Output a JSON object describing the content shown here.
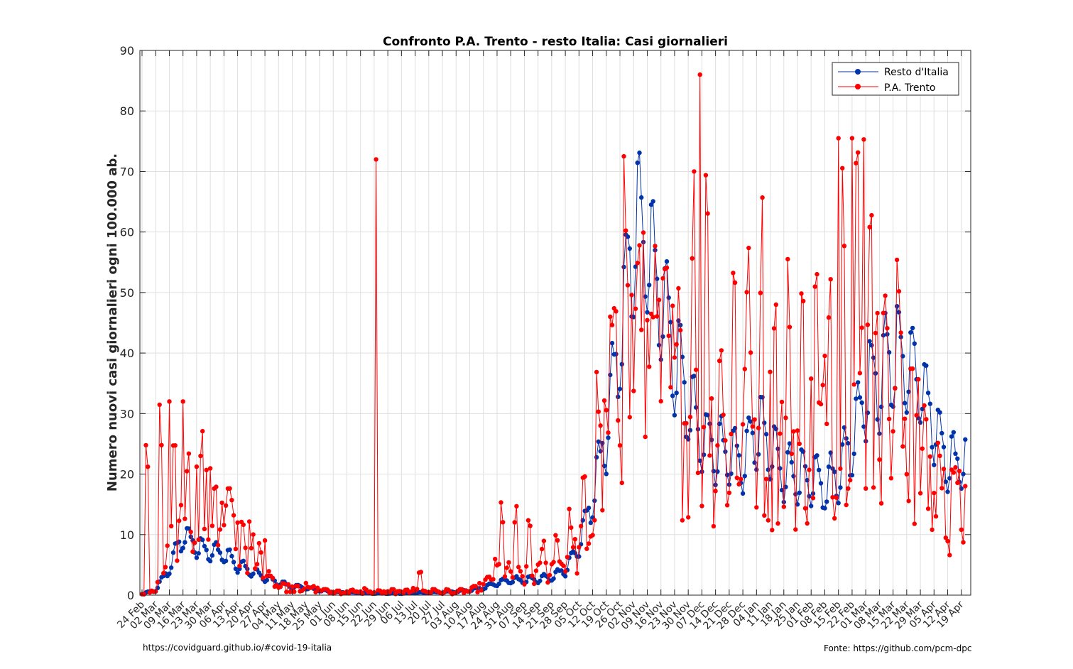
{
  "footer": {
    "source_url": "https://covidguard.github.io/#covid-19-italia",
    "credit": "Fonte: https://github.com/pcm-dpc"
  },
  "chart_data": {
    "type": "line",
    "title": "Confronto P.A. Trento - resto Italia: Casi giornalieri",
    "xlabel": "",
    "ylabel": "Numero nuovi casi giornalieri ogni 100.000 ab.",
    "ylim": [
      0,
      90
    ],
    "yticks": [
      0,
      10,
      20,
      30,
      40,
      50,
      60,
      70,
      80,
      90
    ],
    "x_start_date": "24 Feb",
    "x_tick_labels": [
      "24 Feb",
      "02 Mar",
      "09 Mar",
      "16 Mar",
      "23 Mar",
      "30 Mar",
      "06 Apr",
      "13 Apr",
      "20 Apr",
      "27 Apr",
      "04 May",
      "11 May",
      "18 May",
      "25 May",
      "01 Jun",
      "08 Jun",
      "15 Jun",
      "22 Jun",
      "29 Jun",
      "06 Jul",
      "13 Jul",
      "20 Jul",
      "27 Jul",
      "03 Aug",
      "10 Aug",
      "17 Aug",
      "24 Aug",
      "31 Aug",
      "07 Sep",
      "14 Sep",
      "21 Sep",
      "28 Sep",
      "05 Oct",
      "12 Oct",
      "19 Oct",
      "26 Oct",
      "02 Nov",
      "09 Nov",
      "16 Nov",
      "23 Nov",
      "30 Nov",
      "07 Dec",
      "14 Dec",
      "21 Dec",
      "28 Dec",
      "04 Jan",
      "11 Jan",
      "18 Jan",
      "25 Jan",
      "01 Feb",
      "08 Feb",
      "15 Feb",
      "22 Feb",
      "01 Mar",
      "08 Mar",
      "15 Mar",
      "22 Mar",
      "29 Mar",
      "05 Apr",
      "12 Apr",
      "19 Apr"
    ],
    "grid": true,
    "legend_position": "top-right",
    "series": [
      {
        "name": "Resto d'Italia",
        "color": "#0000bb",
        "weekly_values": [
          0.2,
          0.8,
          4.5,
          10.0,
          8.0,
          7.2,
          6.8,
          5.0,
          4.0,
          3.0,
          2.0,
          1.5,
          1.2,
          0.8,
          0.5,
          0.4,
          0.4,
          0.3,
          0.3,
          0.3,
          0.4,
          0.4,
          0.5,
          0.6,
          0.8,
          1.2,
          2.0,
          2.5,
          2.5,
          2.6,
          3.0,
          4.2,
          8.0,
          16.0,
          27.0,
          42.0,
          60.0,
          58.0,
          50.0,
          40.0,
          32.0,
          26.0,
          24.0,
          23.0,
          22.0,
          28.0,
          24.0,
          20.0,
          20.0,
          19.0,
          18.0,
          20.0,
          26.0,
          34.0,
          36.0,
          40.0,
          39.0,
          35.0,
          28.0,
          22.0,
          22.0
        ]
      },
      {
        "name": "P.A. Trento",
        "color": "#ff0000",
        "weekly_values": [
          0.2,
          0.8,
          8.0,
          15.0,
          18.0,
          16.0,
          14.0,
          11.0,
          9.0,
          7.0,
          1.5,
          1.5,
          1.5,
          1.0,
          0.5,
          0.5,
          0.5,
          0.5,
          0.5,
          0.5,
          1.0,
          0.6,
          0.5,
          0.5,
          0.8,
          1.8,
          5.0,
          4.0,
          3.5,
          4.0,
          5.5,
          7.0,
          8.0,
          14.0,
          28.0,
          42.0,
          47.0,
          46.0,
          42.0,
          38.0,
          33.0,
          32.0,
          30.0,
          28.0,
          30.0,
          32.0,
          30.0,
          28.0,
          29.0,
          30.0,
          32.0,
          36.0,
          45.0,
          42.0,
          36.0,
          35.0,
          32.0,
          28.0,
          18.0,
          17.0,
          16.0
        ],
        "spikes": [
          {
            "day": 14,
            "value": 32.0
          },
          {
            "day": 21,
            "value": 32.0
          },
          {
            "day": 120,
            "value": 72.0
          },
          {
            "day": 247,
            "value": 72.5
          },
          {
            "day": 283,
            "value": 70.0
          },
          {
            "day": 286,
            "value": 86.0
          },
          {
            "day": 357,
            "value": 75.5
          },
          {
            "day": 364,
            "value": 75.5
          },
          {
            "day": 370,
            "value": 75.3
          }
        ],
        "weekly_peaks": [
          32,
          32,
          25,
          24,
          28.5,
          19,
          18.5,
          12.5,
          4,
          2.5,
          2,
          1.5,
          1.2,
          1,
          0.8,
          1,
          1.2,
          0.8,
          1,
          1,
          5.5,
          1.2,
          1,
          1,
          1.5,
          3,
          17,
          15.3,
          14.3,
          9.5,
          11.5,
          14.5,
          20.7,
          38.5,
          47.8,
          72.5,
          59.5,
          47.5,
          55,
          51.5,
          70,
          86,
          44.2,
          59.5,
          64,
          67.2,
          51.6,
          57,
          51.6,
          56.6,
          57.8,
          75.5,
          75.5,
          75.3,
          57,
          57.2,
          40,
          31.4,
          26.7,
          22.2,
          19.5
        ]
      }
    ]
  }
}
